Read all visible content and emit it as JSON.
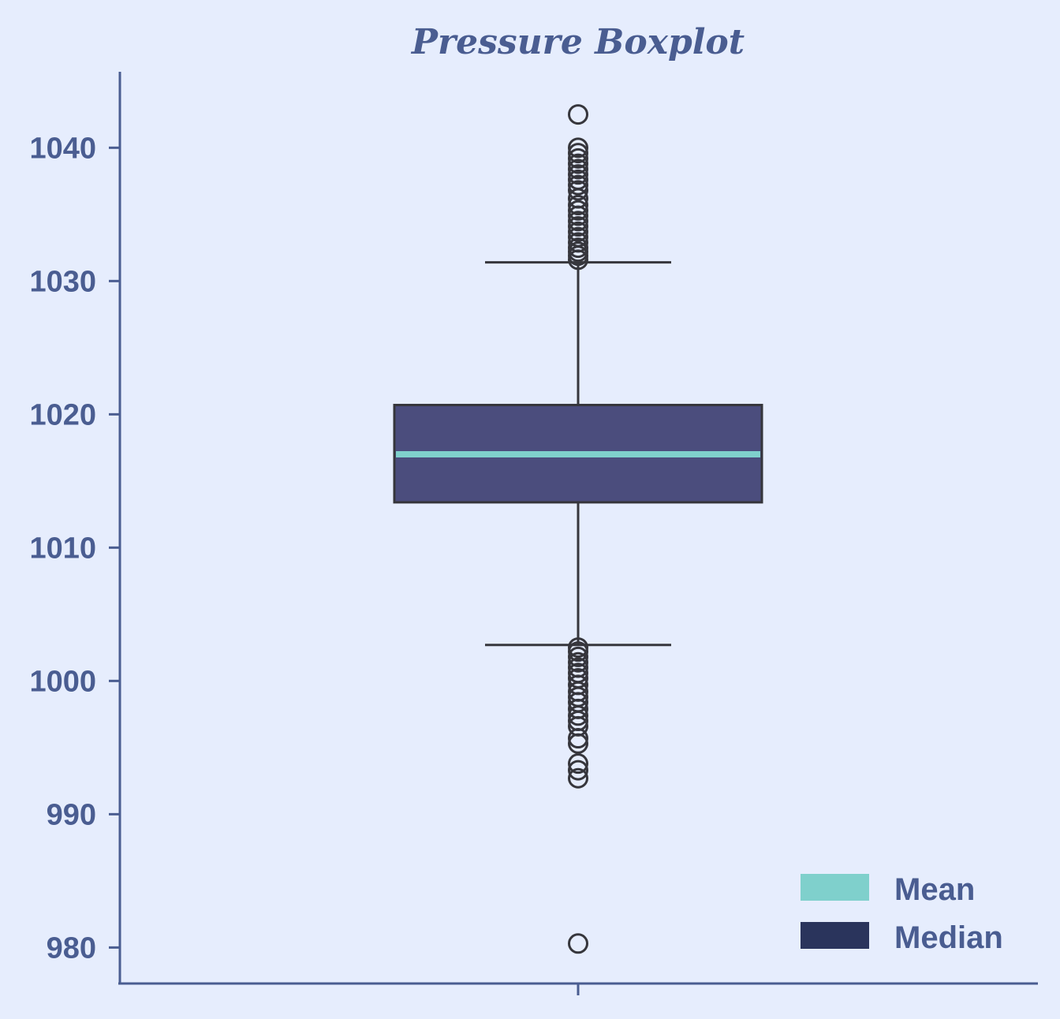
{
  "colors": {
    "background": "#e6edfd",
    "axis": "#4a5d91",
    "text": "#4a5d91",
    "box_fill": "#4b4d7d",
    "box_edge": "#36363c",
    "mean_line": "#7fd0cc",
    "median_patch": "#2a345c",
    "outlier_edge": "#36363c"
  },
  "chart_data": {
    "type": "boxplot",
    "title": "Pressure Boxplot",
    "xlabel": "",
    "ylabel": "",
    "ylim": [
      977.3,
      1045.7
    ],
    "yticks": [
      980,
      990,
      1000,
      1010,
      1020,
      1030,
      1040
    ],
    "ytick_labels": [
      "980",
      "990",
      "1000",
      "1010",
      "1020",
      "1030",
      "1040"
    ],
    "grid": false,
    "legend_position": "lower-right",
    "legend": [
      {
        "label": "Mean",
        "color": "#7fd0cc"
      },
      {
        "label": "Median",
        "color": "#2a345c"
      }
    ],
    "box": {
      "q1": 1013.4,
      "q3": 1020.7,
      "mean": 1017.0,
      "whisker_low": 1002.7,
      "whisker_high": 1031.4
    },
    "outliers": [
      1042.5,
      1040.0,
      1039.6,
      1039.2,
      1038.8,
      1038.4,
      1038.0,
      1037.6,
      1037.2,
      1036.8,
      1036.2,
      1035.7,
      1035.3,
      1034.9,
      1034.5,
      1034.1,
      1033.7,
      1033.3,
      1032.9,
      1032.5,
      1032.2,
      1031.9,
      1031.6,
      1002.5,
      1002.2,
      1001.8,
      1001.4,
      1001.0,
      1000.6,
      1000.2,
      999.7,
      999.2,
      998.8,
      998.4,
      997.9,
      997.4,
      997.0,
      996.6,
      995.7,
      995.3,
      993.8,
      993.3,
      992.7,
      980.3
    ]
  }
}
